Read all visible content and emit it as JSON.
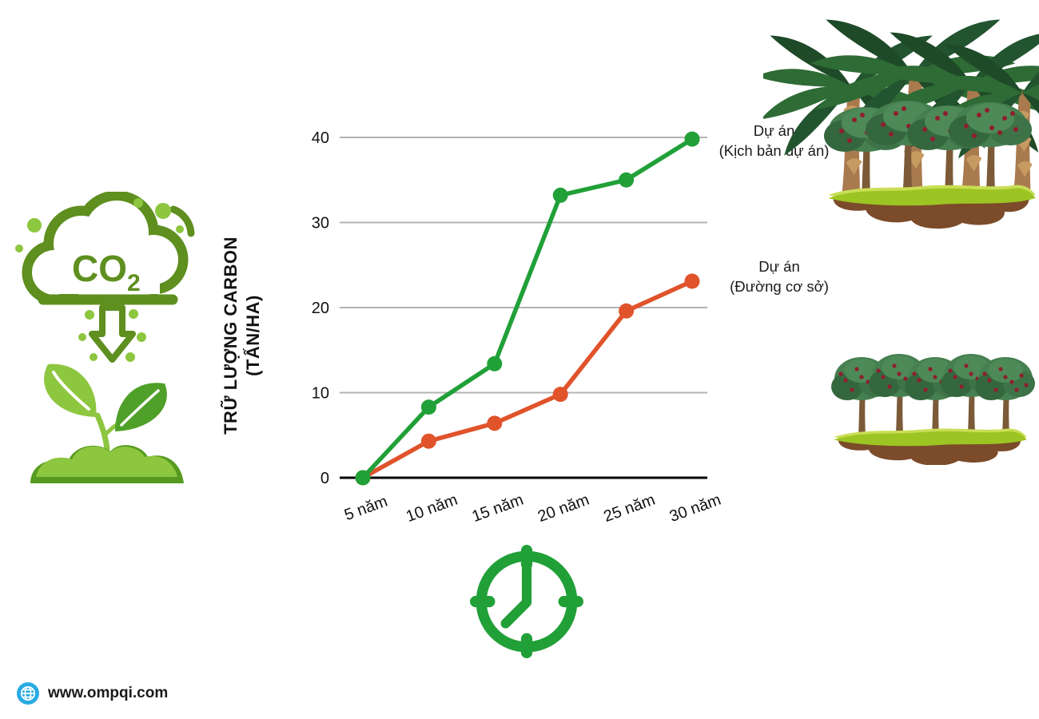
{
  "branding": {
    "website": "www.ompqi.com"
  },
  "icons": {
    "co2_absorption": "co2-absorption-icon",
    "co2_text_main": "CO",
    "co2_text_sub": "2",
    "clock": "clock-icon",
    "globe": "globe-icon",
    "project_forest": "project-forest-illustration",
    "baseline_forest": "baseline-forest-illustration"
  },
  "colors": {
    "project_series": "#21A038",
    "baseline_series": "#E0532B",
    "co2_icon_olive": "#5E8F1F",
    "co2_icon_light_green": "#8DC63F",
    "clock_green": "#21A038",
    "globe_blue": "#29ABE2",
    "gridline_gray": "#B3B3B3",
    "axis_black": "#000000"
  },
  "chart_data": {
    "type": "line",
    "categories": [
      "5 năm",
      "10 năm",
      "15 năm",
      "20 năm",
      "25 năm",
      "30 năm"
    ],
    "x_values": [
      5,
      10,
      15,
      20,
      25,
      30
    ],
    "y_ticks": [
      0,
      10,
      20,
      30,
      40
    ],
    "ylim": [
      0,
      40
    ],
    "ylabel_line1": "TRỮ LƯỢNG CARBON",
    "ylabel_line2": "(TẤN/HA)",
    "grid": true,
    "legend_position": "right",
    "series": [
      {
        "name": "Dự án (Kịch bản dự án)",
        "label_line1": "Dự án",
        "label_line2": "(Kịch bản dự án)",
        "color": "#21A038",
        "values": [
          0,
          8.3,
          13.4,
          33.2,
          35.0,
          39.8
        ]
      },
      {
        "name": "Dự án (Đường cơ sở)",
        "label_line1": "Dự án",
        "label_line2": "(Đường cơ sở)",
        "color": "#E0532B",
        "values": [
          0,
          4.3,
          6.4,
          9.8,
          19.6,
          23.1
        ]
      }
    ]
  }
}
